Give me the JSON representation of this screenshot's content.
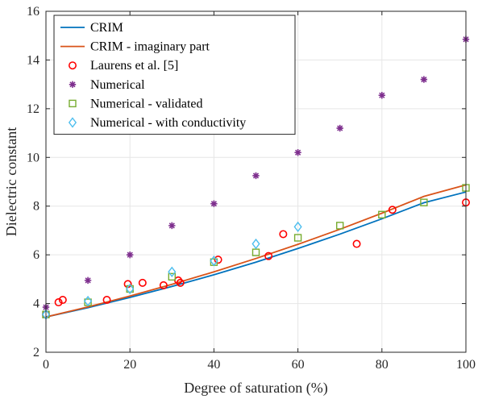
{
  "chart_data": {
    "type": "scatter",
    "xlabel": "Degree of saturation (%)",
    "ylabel": "Dielectric constant",
    "xlim": [
      0,
      100
    ],
    "ylim": [
      2,
      16
    ],
    "xticks": [
      0,
      20,
      40,
      60,
      80,
      100
    ],
    "yticks": [
      2,
      4,
      6,
      8,
      10,
      12,
      14,
      16
    ],
    "grid": true,
    "legend_position": "top-left",
    "series": [
      {
        "name": "CRIM",
        "kind": "line",
        "color": "#0072BD",
        "x": [
          0,
          10,
          20,
          30,
          40,
          50,
          60,
          70,
          80,
          90,
          100
        ],
        "y": [
          3.45,
          3.83,
          4.25,
          4.7,
          5.18,
          5.7,
          6.26,
          6.85,
          7.48,
          8.14,
          8.58
        ]
      },
      {
        "name": "CRIM - imaginary part",
        "kind": "line",
        "color": "#D95319",
        "x": [
          0,
          10,
          20,
          30,
          40,
          50,
          60,
          70,
          80,
          90,
          100
        ],
        "y": [
          3.45,
          3.86,
          4.31,
          4.79,
          5.3,
          5.85,
          6.43,
          7.05,
          7.71,
          8.4,
          8.87
        ]
      },
      {
        "name": "Laurens et al. [5]",
        "kind": "marker",
        "marker": "circle",
        "color": "#FF0000",
        "x": [
          0,
          3,
          4,
          14.5,
          19.5,
          23,
          28,
          31.5,
          32,
          41,
          53,
          56.5,
          74,
          82.5,
          100
        ],
        "y": [
          3.55,
          4.05,
          4.15,
          4.15,
          4.8,
          4.85,
          4.75,
          4.95,
          4.85,
          5.8,
          5.95,
          6.85,
          6.45,
          7.85,
          8.15
        ]
      },
      {
        "name": "Numerical",
        "kind": "marker",
        "marker": "star",
        "color": "#7E2F8E",
        "x": [
          0,
          10,
          20,
          30,
          40,
          50,
          60,
          70,
          80,
          90,
          100
        ],
        "y": [
          3.85,
          4.95,
          6.0,
          7.2,
          8.1,
          9.25,
          10.2,
          11.2,
          12.55,
          13.2,
          14.85
        ]
      },
      {
        "name": "Numerical - validated",
        "kind": "marker",
        "marker": "square",
        "color": "#77AC30",
        "x": [
          0,
          10,
          20,
          30,
          40,
          50,
          60,
          70,
          80,
          90,
          100
        ],
        "y": [
          3.55,
          4.05,
          4.6,
          5.1,
          5.7,
          6.1,
          6.7,
          7.2,
          7.65,
          8.15,
          8.75
        ]
      },
      {
        "name": "Numerical - with conductivity",
        "kind": "marker",
        "marker": "diamond",
        "color": "#4DBEEE",
        "x": [
          0,
          10,
          20,
          30,
          40,
          50,
          60
        ],
        "y": [
          3.55,
          4.1,
          4.6,
          5.3,
          5.75,
          6.45,
          7.15
        ]
      }
    ]
  }
}
